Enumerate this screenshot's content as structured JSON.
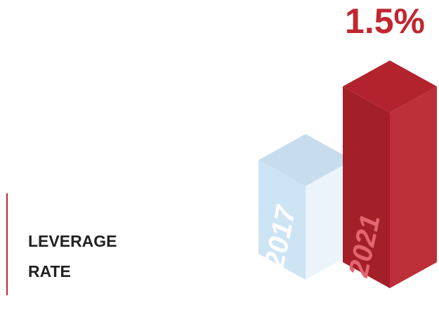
{
  "chart_data": {
    "type": "bar3d",
    "title": "LEVERAGE RATE",
    "categories": [
      "2017",
      "2021"
    ],
    "values": [
      0.8,
      1.5
    ],
    "value_labels": [
      null,
      "1.5%"
    ],
    "colors": [
      "#cde4f4",
      "#b9242f"
    ]
  }
}
